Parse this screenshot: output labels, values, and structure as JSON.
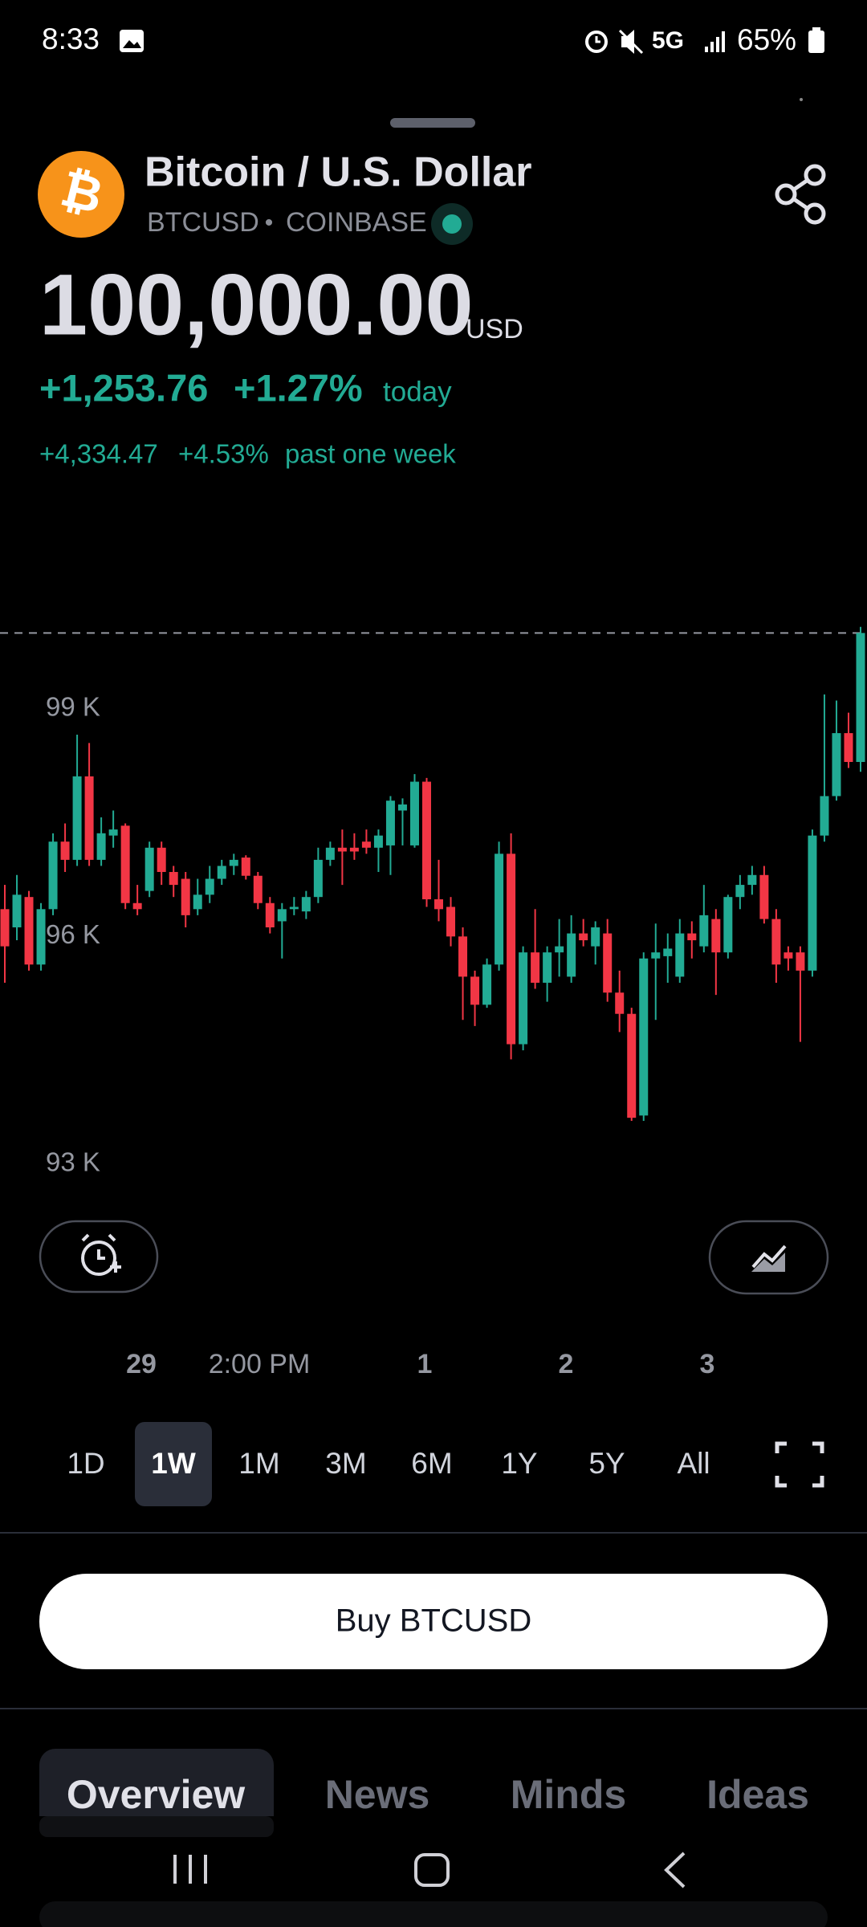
{
  "status_bar": {
    "time": "8:33",
    "network": "5G",
    "battery": "65%"
  },
  "header": {
    "symbol_icon": "₿",
    "title": "Bitcoin / U.S. Dollar",
    "ticker": "BTCUSD",
    "separator": "•",
    "exchange": "COINBASE"
  },
  "price": {
    "value": "100,000.00",
    "currency": "USD",
    "change_today": "+1,253.76",
    "change_today_pct": "+1.27%",
    "today_label": "today",
    "change_week": "+4,334.47",
    "change_week_pct": "+4.53%",
    "week_label": "past one week"
  },
  "chart_data": {
    "type": "candlestick",
    "open": [
      96360,
      96120,
      96520,
      95630,
      96360,
      97250,
      97010,
      98110,
      97010,
      97330,
      97460,
      96440,
      96600,
      97170,
      96850,
      96760,
      96360,
      96550,
      96760,
      96930,
      97040,
      96800,
      96440,
      96200,
      96360,
      96330,
      96520,
      97010,
      97170,
      97170,
      97250,
      97170,
      97200,
      97660,
      97200,
      98040,
      96490,
      96390,
      96000,
      95470,
      95100,
      95630,
      97090,
      94580,
      95790,
      95390,
      95790,
      95470,
      96040,
      95870,
      96040,
      95260,
      94980,
      93640,
      95710,
      95740,
      95470,
      96040,
      95870,
      96230,
      95790,
      96520,
      96680,
      96810,
      96230,
      95790,
      95790,
      95550,
      97330,
      97850,
      98680,
      98300
    ],
    "high": [
      96680,
      96810,
      96600,
      96440,
      97360,
      97490,
      98660,
      98550,
      97570,
      97660,
      97490,
      96680,
      97250,
      97250,
      96930,
      96850,
      96760,
      96930,
      97010,
      97090,
      97070,
      96850,
      96520,
      96440,
      96520,
      96600,
      97170,
      97250,
      97410,
      97360,
      97410,
      97410,
      97850,
      97820,
      98140,
      98090,
      97010,
      96520,
      96120,
      95550,
      95710,
      97250,
      97360,
      95870,
      96360,
      95870,
      96230,
      96280,
      96230,
      96200,
      96230,
      95550,
      95060,
      95790,
      96170,
      96040,
      96230,
      96200,
      96680,
      96360,
      96550,
      96810,
      96930,
      96930,
      96360,
      95870,
      95870,
      97410,
      99190,
      99110,
      98950,
      100080
    ],
    "low": [
      95390,
      95950,
      95550,
      95550,
      96280,
      96850,
      96930,
      96930,
      96930,
      97170,
      96360,
      96280,
      96520,
      96680,
      96520,
      96120,
      96280,
      96440,
      96680,
      96810,
      96750,
      96360,
      96040,
      95710,
      96280,
      96230,
      96440,
      96930,
      96680,
      97010,
      97090,
      96850,
      96810,
      97200,
      97170,
      96390,
      96200,
      95870,
      94900,
      94820,
      95060,
      95550,
      94380,
      94500,
      95310,
      95140,
      95470,
      95390,
      95870,
      95630,
      95140,
      94740,
      93570,
      93570,
      94900,
      95390,
      95390,
      95710,
      95790,
      95230,
      95710,
      96360,
      96550,
      96170,
      95390,
      95550,
      94610,
      95470,
      97250,
      97790,
      98220,
      98170
    ],
    "close": [
      95870,
      96550,
      95630,
      96360,
      97250,
      97010,
      98110,
      97010,
      97360,
      97410,
      96440,
      96360,
      97170,
      96850,
      96680,
      96280,
      96550,
      96760,
      96930,
      97010,
      96800,
      96440,
      96120,
      96360,
      96390,
      96520,
      97010,
      97170,
      97120,
      97120,
      97170,
      97330,
      97790,
      97740,
      98040,
      96490,
      96360,
      96000,
      95470,
      95100,
      95630,
      97090,
      94580,
      95790,
      95390,
      95790,
      95870,
      96040,
      95950,
      96120,
      95260,
      94980,
      93610,
      95710,
      95790,
      95840,
      96040,
      95950,
      96280,
      95790,
      96520,
      96680,
      96810,
      96230,
      95630,
      95710,
      95550,
      97330,
      97850,
      98680,
      98300,
      100000
    ],
    "up_color": "#22ab94",
    "down_color": "#f23645",
    "last_price": 100000,
    "ylim": [
      92670,
      100300
    ],
    "yticks": [
      {
        "value": 93000,
        "label": "93 K"
      },
      {
        "value": 96000,
        "label": "96 K"
      },
      {
        "value": 99000,
        "label": "99 K"
      }
    ],
    "x_labels": [
      "29",
      "2:00 PM",
      "1",
      "2",
      "3"
    ]
  },
  "time_ranges": {
    "options": [
      "1D",
      "1W",
      "1M",
      "3M",
      "6M",
      "1Y",
      "5Y",
      "All"
    ],
    "selected": 1
  },
  "buy_button": "Buy BTCUSD",
  "tabs": {
    "options": [
      "Overview",
      "News",
      "Minds",
      "Ideas"
    ],
    "selected": 0
  }
}
